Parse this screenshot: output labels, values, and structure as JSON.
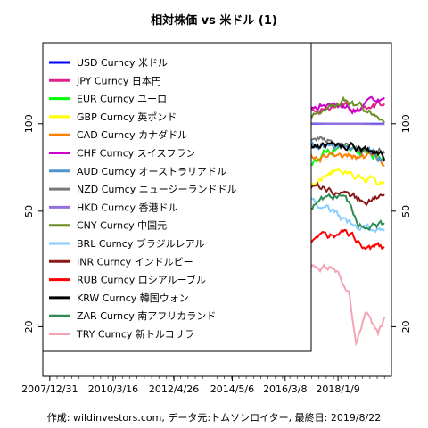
{
  "chart_data": {
    "type": "line",
    "title": "相対株価 vs 米ドル (1)",
    "caption": "作成: wildinvestors.com, データ元:トムソンロイター, 最終日: 2019/8/22",
    "y_scale": "log",
    "ylim": [
      13.5,
      190
    ],
    "y_ticks": [
      {
        "value": 100,
        "label": "100"
      },
      {
        "value": 50,
        "label": "50"
      },
      {
        "value": 20,
        "label": "20"
      }
    ],
    "x_range": [
      "2007-12-31",
      "2019-08-22"
    ],
    "x_ticks": [
      {
        "date": "2007-12-31",
        "label": "2007/12/31"
      },
      {
        "date": "2010-03-16",
        "label": "2010/3/16"
      },
      {
        "date": "2012-04-26",
        "label": "2012/4/26"
      },
      {
        "date": "2014-05-06",
        "label": "2014/5/6"
      },
      {
        "date": "2016-03-08",
        "label": "2016/3/8"
      },
      {
        "date": "2018-01-09",
        "label": "2018/1/9"
      }
    ],
    "grid": false,
    "legend_position": "top-left",
    "series": [
      {
        "name": "USD Curncy 米ドル",
        "color": "#0000ff",
        "points": [
          [
            "2007-12-31",
            100
          ],
          [
            "2019-08-22",
            100
          ]
        ]
      },
      {
        "name": "JPY Curncy 日本円",
        "color": "#e0218a",
        "points": [
          [
            "2007-12-31",
            100
          ],
          [
            "2008-06-30",
            108
          ],
          [
            "2008-12-31",
            135
          ],
          [
            "2009-06-30",
            130
          ],
          [
            "2010-06-30",
            140
          ],
          [
            "2011-06-30",
            155
          ],
          [
            "2011-10-31",
            165
          ],
          [
            "2012-06-30",
            158
          ],
          [
            "2012-12-31",
            140
          ],
          [
            "2013-06-30",
            120
          ],
          [
            "2014-06-30",
            120
          ],
          [
            "2014-12-31",
            103
          ],
          [
            "2015-06-30",
            100
          ],
          [
            "2016-06-30",
            120
          ],
          [
            "2017-06-30",
            110
          ],
          [
            "2018-06-30",
            112
          ],
          [
            "2019-08-22",
            116
          ]
        ]
      },
      {
        "name": "EUR Curncy ユーロ",
        "color": "#00ff00",
        "points": [
          [
            "2007-12-31",
            100
          ],
          [
            "2008-04-30",
            107
          ],
          [
            "2008-10-31",
            85
          ],
          [
            "2009-12-31",
            98
          ],
          [
            "2010-06-30",
            82
          ],
          [
            "2011-04-30",
            98
          ],
          [
            "2012-06-30",
            85
          ],
          [
            "2013-12-31",
            94
          ],
          [
            "2014-06-30",
            93
          ],
          [
            "2015-03-31",
            73
          ],
          [
            "2016-12-31",
            71
          ],
          [
            "2018-01-31",
            85
          ],
          [
            "2019-08-22",
            76
          ]
        ]
      },
      {
        "name": "GBP Curncy 英ポンド",
        "color": "#ffff00",
        "points": [
          [
            "2007-12-31",
            100
          ],
          [
            "2008-06-30",
            98
          ],
          [
            "2008-12-31",
            73
          ],
          [
            "2009-06-30",
            82
          ],
          [
            "2011-06-30",
            82
          ],
          [
            "2013-06-30",
            77
          ],
          [
            "2014-06-30",
            85
          ],
          [
            "2015-06-30",
            77
          ],
          [
            "2016-06-30",
            67
          ],
          [
            "2016-10-31",
            61
          ],
          [
            "2018-01-31",
            70
          ],
          [
            "2019-08-22",
            61
          ]
        ]
      },
      {
        "name": "CAD Curncy カナダドル",
        "color": "#ff7f00",
        "points": [
          [
            "2007-12-31",
            100
          ],
          [
            "2008-06-30",
            99
          ],
          [
            "2008-12-31",
            81
          ],
          [
            "2009-06-30",
            85
          ],
          [
            "2011-06-30",
            102
          ],
          [
            "2012-12-31",
            99
          ],
          [
            "2013-12-31",
            93
          ],
          [
            "2014-12-31",
            86
          ],
          [
            "2015-06-30",
            80
          ],
          [
            "2016-01-31",
            70
          ],
          [
            "2017-06-30",
            77
          ],
          [
            "2018-06-30",
            76
          ],
          [
            "2019-08-22",
            75
          ]
        ]
      },
      {
        "name": "CHF Curncy スイスフラン",
        "color": "#cc00cc",
        "points": [
          [
            "2007-12-31",
            100
          ],
          [
            "2008-06-30",
            104
          ],
          [
            "2008-12-31",
            106
          ],
          [
            "2009-12-31",
            108
          ],
          [
            "2010-12-31",
            120
          ],
          [
            "2011-08-31",
            140
          ],
          [
            "2012-06-30",
            118
          ],
          [
            "2013-12-31",
            124
          ],
          [
            "2014-12-31",
            114
          ],
          [
            "2015-01-31",
            128
          ],
          [
            "2016-06-30",
            115
          ],
          [
            "2017-06-30",
            116
          ],
          [
            "2018-06-30",
            113
          ],
          [
            "2019-08-22",
            114
          ]
        ]
      },
      {
        "name": "AUD Curncy オーストラリアドル",
        "color": "#4f94cd",
        "points": [
          [
            "2007-12-31",
            100
          ],
          [
            "2008-06-30",
            105
          ],
          [
            "2008-10-31",
            72
          ],
          [
            "2009-06-30",
            85
          ],
          [
            "2010-06-30",
            95
          ],
          [
            "2011-06-30",
            118
          ],
          [
            "2012-06-30",
            112
          ],
          [
            "2013-06-30",
            103
          ],
          [
            "2013-12-31",
            96
          ],
          [
            "2014-12-31",
            88
          ],
          [
            "2015-06-30",
            78
          ],
          [
            "2016-01-31",
            77
          ],
          [
            "2017-06-30",
            85
          ],
          [
            "2018-06-30",
            83
          ],
          [
            "2019-08-22",
            77
          ]
        ]
      },
      {
        "name": "NZD Curncy ニュージーランドドル",
        "color": "#777777",
        "points": [
          [
            "2007-12-31",
            100
          ],
          [
            "2008-06-30",
            102
          ],
          [
            "2008-12-31",
            72
          ],
          [
            "2009-06-30",
            80
          ],
          [
            "2011-06-30",
            98
          ],
          [
            "2012-06-30",
            98
          ],
          [
            "2013-06-30",
            96
          ],
          [
            "2014-06-30",
            103
          ],
          [
            "2015-06-30",
            85
          ],
          [
            "2016-06-30",
            84
          ],
          [
            "2017-06-30",
            88
          ],
          [
            "2018-06-30",
            82
          ],
          [
            "2019-08-22",
            79
          ]
        ]
      },
      {
        "name": "HKD Curncy 香港ドル",
        "color": "#9370db",
        "points": [
          [
            "2007-12-31",
            100
          ],
          [
            "2011-12-31",
            100.3
          ],
          [
            "2016-12-31",
            100.4
          ],
          [
            "2019-08-22",
            99.6
          ]
        ]
      },
      {
        "name": "CNY Curncy 中国元",
        "color": "#6b8e23",
        "points": [
          [
            "2007-12-31",
            100
          ],
          [
            "2008-06-30",
            106
          ],
          [
            "2010-06-30",
            108
          ],
          [
            "2012-06-30",
            115
          ],
          [
            "2014-01-31",
            120
          ],
          [
            "2015-08-31",
            114
          ],
          [
            "2016-12-31",
            105
          ],
          [
            "2018-03-31",
            117
          ],
          [
            "2019-08-22",
            103
          ]
        ]
      },
      {
        "name": "BRL Curncy ブラジルレアル",
        "color": "#87ceff",
        "points": [
          [
            "2007-12-31",
            100
          ],
          [
            "2008-07-31",
            110
          ],
          [
            "2008-12-31",
            72
          ],
          [
            "2009-12-31",
            100
          ],
          [
            "2011-07-31",
            115
          ],
          [
            "2012-06-30",
            88
          ],
          [
            "2013-06-30",
            80
          ],
          [
            "2014-06-30",
            78
          ],
          [
            "2015-09-30",
            44
          ],
          [
            "2016-01-31",
            44
          ],
          [
            "2017-01-31",
            55
          ],
          [
            "2018-09-30",
            43
          ],
          [
            "2019-08-22",
            44
          ]
        ]
      },
      {
        "name": "INR Curncy インドルピー",
        "color": "#8b1a1a",
        "points": [
          [
            "2007-12-31",
            100
          ],
          [
            "2008-12-31",
            80
          ],
          [
            "2009-12-31",
            85
          ],
          [
            "2010-12-31",
            88
          ],
          [
            "2012-06-30",
            71
          ],
          [
            "2013-08-31",
            61
          ],
          [
            "2014-06-30",
            66
          ],
          [
            "2015-12-31",
            60
          ],
          [
            "2016-12-31",
            58
          ],
          [
            "2017-06-30",
            61
          ],
          [
            "2018-10-31",
            53
          ],
          [
            "2019-08-22",
            55
          ]
        ]
      },
      {
        "name": "RUB Curncy ロシアルーブル",
        "color": "#ff0000",
        "points": [
          [
            "2007-12-31",
            100
          ],
          [
            "2008-07-31",
            105
          ],
          [
            "2009-02-28",
            68
          ],
          [
            "2010-06-30",
            80
          ],
          [
            "2011-06-30",
            87
          ],
          [
            "2012-06-30",
            75
          ],
          [
            "2013-06-30",
            75
          ],
          [
            "2014-06-30",
            70
          ],
          [
            "2014-12-31",
            42
          ],
          [
            "2015-01-31",
            37
          ],
          [
            "2015-05-31",
            50
          ],
          [
            "2015-08-31",
            37
          ],
          [
            "2016-01-31",
            31
          ],
          [
            "2016-06-30",
            38
          ],
          [
            "2017-06-30",
            42
          ],
          [
            "2018-06-30",
            40
          ],
          [
            "2019-08-22",
            37
          ]
        ]
      },
      {
        "name": "KRW Curncy 韓国ウォン",
        "color": "#000000",
        "points": [
          [
            "2007-12-31",
            100
          ],
          [
            "2008-12-31",
            72
          ],
          [
            "2009-03-31",
            65
          ],
          [
            "2009-12-31",
            80
          ],
          [
            "2011-06-30",
            86
          ],
          [
            "2012-06-30",
            81
          ],
          [
            "2014-06-30",
            92
          ],
          [
            "2015-12-31",
            80
          ],
          [
            "2016-06-30",
            80
          ],
          [
            "2017-06-30",
            83
          ],
          [
            "2018-06-30",
            85
          ],
          [
            "2019-08-22",
            77
          ]
        ]
      },
      {
        "name": "ZAR Curncy 南アフリカランド",
        "color": "#2e8b57",
        "points": [
          [
            "2007-12-31",
            100
          ],
          [
            "2008-10-31",
            70
          ],
          [
            "2009-06-30",
            85
          ],
          [
            "2011-06-30",
            98
          ],
          [
            "2012-06-30",
            83
          ],
          [
            "2013-06-30",
            68
          ],
          [
            "2014-06-30",
            65
          ],
          [
            "2015-06-30",
            56
          ],
          [
            "2016-01-31",
            42
          ],
          [
            "2017-03-31",
            53
          ],
          [
            "2018-02-28",
            58
          ],
          [
            "2018-09-30",
            45
          ],
          [
            "2019-08-22",
            45
          ]
        ]
      },
      {
        "name": "TRY Curncy 新トルコリラ",
        "color": "#f4a4b4",
        "points": [
          [
            "2007-12-31",
            100
          ],
          [
            "2008-06-30",
            95
          ],
          [
            "2008-12-31",
            76
          ],
          [
            "2009-06-30",
            75
          ],
          [
            "2010-06-30",
            78
          ],
          [
            "2011-06-30",
            72
          ],
          [
            "2012-06-30",
            65
          ],
          [
            "2013-06-30",
            60
          ],
          [
            "2014-01-31",
            52
          ],
          [
            "2015-06-30",
            44
          ],
          [
            "2016-06-30",
            40
          ],
          [
            "2017-01-31",
            32
          ],
          [
            "2017-12-31",
            31
          ],
          [
            "2018-05-31",
            26
          ],
          [
            "2018-08-31",
            17
          ],
          [
            "2018-12-31",
            22
          ],
          [
            "2019-05-31",
            19
          ],
          [
            "2019-08-22",
            21
          ]
        ]
      }
    ]
  }
}
